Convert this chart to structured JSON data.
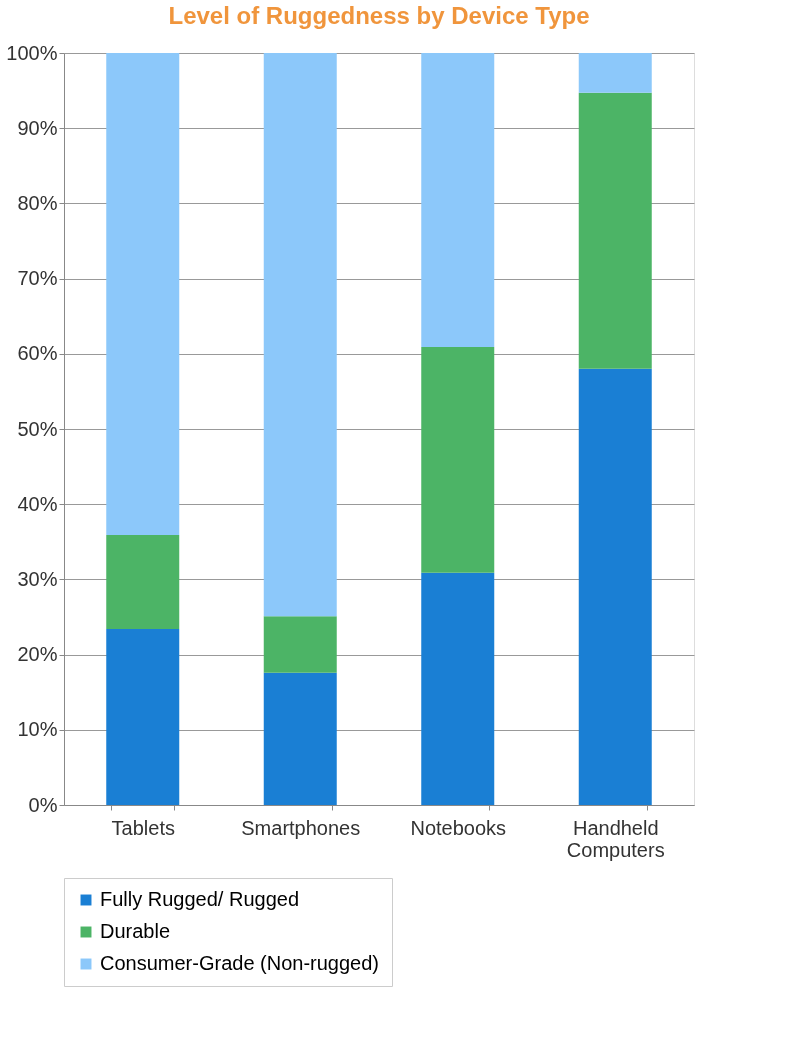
{
  "chart_data": {
    "type": "bar",
    "title": "Level of Ruggedness by Device Type",
    "categories": [
      "Tablets",
      "Smartphones",
      "Notebooks",
      "Handheld Computers"
    ],
    "stacked": true,
    "series": [
      {
        "name": "Fully Rugged/ Rugged",
        "color": "#1a7fd4",
        "values": [
          23.4,
          17.6,
          30.9,
          58.0
        ]
      },
      {
        "name": "Durable",
        "color": "#4cb466",
        "values": [
          12.5,
          7.5,
          30.0,
          36.7
        ]
      },
      {
        "name": "Consumer-Grade (Non-rugged)",
        "color": "#8cc8fa",
        "values": [
          64.1,
          74.9,
          39.1,
          5.3
        ]
      }
    ],
    "ylim": [
      0,
      100
    ],
    "yticks": [
      {
        "value": 0,
        "label": "0%"
      },
      {
        "value": 10,
        "label": "10%"
      },
      {
        "value": 20,
        "label": "20%"
      },
      {
        "value": 30,
        "label": "30%"
      },
      {
        "value": 40,
        "label": "40%"
      },
      {
        "value": 50,
        "label": "50%"
      },
      {
        "value": 60,
        "label": "60%"
      },
      {
        "value": 70,
        "label": "70%"
      },
      {
        "value": 80,
        "label": "80%"
      },
      {
        "value": 90,
        "label": "90%"
      },
      {
        "value": 100,
        "label": "100%"
      }
    ],
    "grid": "y",
    "legend": "bottom"
  }
}
